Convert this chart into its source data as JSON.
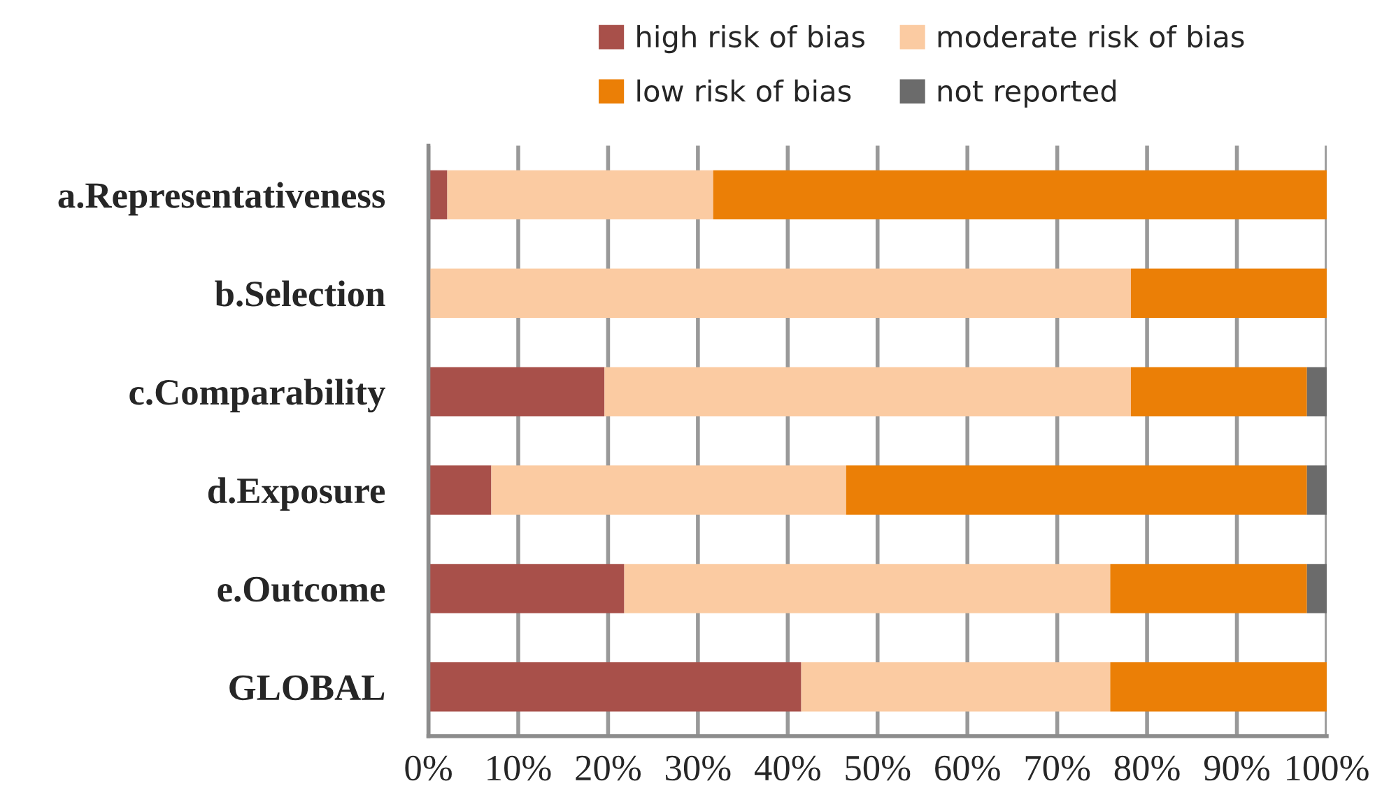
{
  "chart_data": {
    "type": "bar",
    "orientation": "horizontal",
    "stacked": true,
    "categories": [
      "a.Representativeness",
      "b.Selection",
      "c.Comparability",
      "d.Exposure",
      "e.Outcome",
      "GLOBAL"
    ],
    "series": [
      {
        "name": "high risk of bias",
        "color": "#a8504a",
        "values": [
          2.1,
          0,
          19.6,
          7.0,
          21.8,
          41.5
        ]
      },
      {
        "name": "moderate risk of bias",
        "color": "#fbcba2",
        "values": [
          29.6,
          78.2,
          58.6,
          39.5,
          54.1,
          34.4
        ]
      },
      {
        "name": "low risk of bias",
        "color": "#eb7f06",
        "values": [
          68.3,
          21.8,
          19.6,
          51.3,
          21.9,
          24.1
        ]
      },
      {
        "name": "not reported",
        "color": "#6b6b6b",
        "values": [
          0,
          0,
          2.2,
          2.2,
          2.2,
          0
        ]
      }
    ],
    "xlim": [
      0,
      100
    ],
    "xticks": [
      {
        "value": 0,
        "label": "0%"
      },
      {
        "value": 10,
        "label": "10%"
      },
      {
        "value": 20,
        "label": "20%"
      },
      {
        "value": 30,
        "label": "30%"
      },
      {
        "value": 40,
        "label": "40%"
      },
      {
        "value": 50,
        "label": "50%"
      },
      {
        "value": 60,
        "label": "60%"
      },
      {
        "value": 70,
        "label": "70%"
      },
      {
        "value": 80,
        "label": "80%"
      },
      {
        "value": 90,
        "label": "90%"
      },
      {
        "value": 100,
        "label": "100%"
      }
    ],
    "grid": "x",
    "legend": "top"
  }
}
